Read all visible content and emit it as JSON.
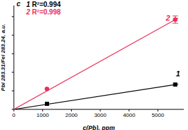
{
  "chart_data": {
    "type": "scatter",
    "annotations": [
      "c"
    ],
    "xlabel": "c(Pb), ppm",
    "ylabel": "PbI 283.31/FeI 283.24, a.u.",
    "xlim": [
      0,
      5900
    ],
    "xticks": [
      0,
      1000,
      2000,
      3000,
      4000,
      5000
    ],
    "ylim": [
      0,
      2.8
    ],
    "yticks": [
      0,
      0.5,
      1,
      1.5,
      2,
      2.5
    ],
    "tick_labels": "x",
    "grid": false,
    "series": [
      {
        "name": "1",
        "r2": "R²=0.994",
        "color": "#000000",
        "marker": "square",
        "x": [
          1150,
          5600
        ],
        "values": [
          0.15,
          0.67
        ],
        "errors": [
          null,
          null
        ],
        "fit": {
          "x": [
            0,
            5700
          ],
          "values": [
            0,
            0.68
          ]
        }
      },
      {
        "name": "2",
        "r2": "R²=0.998",
        "color": "#e8305a",
        "marker": "circle",
        "x": [
          1150,
          5600
        ],
        "values": [
          0.55,
          2.42
        ],
        "errors": [
          null,
          0.1
        ],
        "fit": {
          "x": [
            0,
            5700
          ],
          "values": [
            0,
            2.46
          ]
        }
      }
    ]
  }
}
